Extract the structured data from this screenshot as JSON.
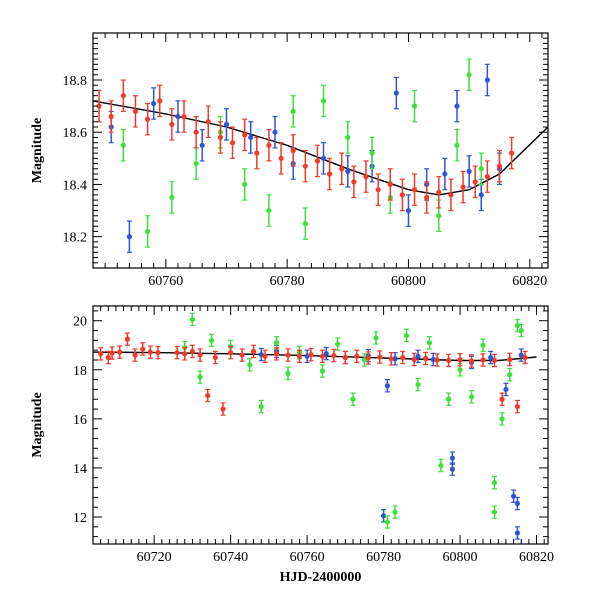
{
  "chart_data": [
    {
      "type": "scatter",
      "xlabel": "",
      "ylabel": "Magnitude",
      "xlim": [
        60748,
        60823
      ],
      "ylim": [
        18.98,
        18.08
      ],
      "y_inverted": true,
      "x_ticks": [
        60760,
        60780,
        60800,
        60820
      ],
      "y_ticks": [
        18.2,
        18.4,
        18.6,
        18.8
      ],
      "model_curve": {
        "x": [
          60748,
          60760,
          60770,
          60780,
          60790,
          60800,
          60805,
          60810,
          60815,
          60823
        ],
        "y": [
          18.72,
          18.67,
          18.62,
          18.55,
          18.46,
          18.38,
          18.36,
          18.38,
          18.44,
          18.62
        ]
      },
      "series": [
        {
          "color": "#2f55d4",
          "points": [
            [
              60751,
              18.62
            ],
            [
              60754,
              18.2
            ],
            [
              60758,
              18.71
            ],
            [
              60762,
              18.66
            ],
            [
              60766,
              18.55
            ],
            [
              60770,
              18.63
            ],
            [
              60774,
              18.58
            ],
            [
              60778,
              18.6
            ],
            [
              60781,
              18.48
            ],
            [
              60786,
              18.5
            ],
            [
              60790,
              18.45
            ],
            [
              60794,
              18.47
            ],
            [
              60798,
              18.75
            ],
            [
              60800,
              18.3
            ],
            [
              60803,
              18.4
            ],
            [
              60806,
              18.44
            ],
            [
              60808,
              18.7
            ],
            [
              60810,
              18.45
            ],
            [
              60812,
              18.36
            ],
            [
              60813,
              18.8
            ],
            [
              60815,
              18.46
            ]
          ]
        },
        {
          "color": "#3ee03e",
          "points": [
            [
              60753,
              18.55
            ],
            [
              60757,
              18.22
            ],
            [
              60761,
              18.35
            ],
            [
              60765,
              18.48
            ],
            [
              60769,
              18.6
            ],
            [
              60773,
              18.4
            ],
            [
              60777,
              18.3
            ],
            [
              60781,
              18.68
            ],
            [
              60783,
              18.25
            ],
            [
              60786,
              18.72
            ],
            [
              60790,
              18.58
            ],
            [
              60794,
              18.52
            ],
            [
              60797,
              18.35
            ],
            [
              60801,
              18.7
            ],
            [
              60805,
              18.28
            ],
            [
              60808,
              18.55
            ],
            [
              60810,
              18.82
            ],
            [
              60812,
              18.46
            ]
          ]
        },
        {
          "color": "#f23a2a",
          "points": [
            [
              60749,
              18.7
            ],
            [
              60751,
              18.66
            ],
            [
              60753,
              18.74
            ],
            [
              60755,
              18.68
            ],
            [
              60757,
              18.65
            ],
            [
              60759,
              18.72
            ],
            [
              60761,
              18.63
            ],
            [
              60763,
              18.66
            ],
            [
              60765,
              18.6
            ],
            [
              60767,
              18.64
            ],
            [
              60769,
              18.58
            ],
            [
              60771,
              18.56
            ],
            [
              60773,
              18.59
            ],
            [
              60775,
              18.52
            ],
            [
              60777,
              18.55
            ],
            [
              60779,
              18.5
            ],
            [
              60781,
              18.53
            ],
            [
              60783,
              18.47
            ],
            [
              60785,
              18.49
            ],
            [
              60787,
              18.44
            ],
            [
              60789,
              18.46
            ],
            [
              60791,
              18.41
            ],
            [
              60793,
              18.43
            ],
            [
              60795,
              18.38
            ],
            [
              60797,
              18.4
            ],
            [
              60799,
              18.36
            ],
            [
              60801,
              18.38
            ],
            [
              60803,
              18.35
            ],
            [
              60805,
              18.37
            ],
            [
              60807,
              18.36
            ],
            [
              60809,
              18.39
            ],
            [
              60811,
              18.41
            ],
            [
              60813,
              18.43
            ],
            [
              60815,
              18.47
            ],
            [
              60817,
              18.52
            ]
          ]
        }
      ]
    },
    {
      "type": "scatter",
      "xlabel": "HJD-2400000",
      "ylabel": "Magnitude",
      "xlim": [
        60704,
        60823
      ],
      "ylim": [
        20.6,
        10.9
      ],
      "y_inverted": true,
      "x_ticks": [
        60720,
        60740,
        60760,
        60780,
        60800,
        60820
      ],
      "y_ticks": [
        12,
        14,
        16,
        18,
        20
      ],
      "model_curve": {
        "x": [
          60704,
          60720,
          60740,
          60760,
          60780,
          60800,
          60810,
          60820
        ],
        "y": [
          18.72,
          18.7,
          18.65,
          18.58,
          18.48,
          18.38,
          18.38,
          18.52
        ]
      },
      "series": [
        {
          "color": "#2f55d4",
          "points": [
            [
              60748,
              18.62
            ],
            [
              60752,
              18.75
            ],
            [
              60760,
              18.55
            ],
            [
              60765,
              18.66
            ],
            [
              60770,
              18.5
            ],
            [
              60776,
              18.58
            ],
            [
              60780,
              12.05
            ],
            [
              60781,
              17.35
            ],
            [
              60783,
              18.45
            ],
            [
              60789,
              18.55
            ],
            [
              60793,
              18.42
            ],
            [
              60798,
              13.95
            ],
            [
              60798,
              14.4
            ],
            [
              60803,
              18.3
            ],
            [
              60808,
              18.5
            ],
            [
              60812,
              17.2
            ],
            [
              60814,
              12.85
            ],
            [
              60815,
              12.55
            ],
            [
              60815,
              11.35
            ],
            [
              60816,
              18.6
            ]
          ]
        },
        {
          "color": "#3ee03e",
          "points": [
            [
              60728,
              18.9
            ],
            [
              60730,
              20.05
            ],
            [
              60732,
              17.7
            ],
            [
              60735,
              19.2
            ],
            [
              60740,
              18.95
            ],
            [
              60745,
              18.2
            ],
            [
              60748,
              16.5
            ],
            [
              60752,
              19.1
            ],
            [
              60755,
              17.85
            ],
            [
              60758,
              18.7
            ],
            [
              60764,
              17.95
            ],
            [
              60768,
              19.05
            ],
            [
              60772,
              16.8
            ],
            [
              60775,
              18.4
            ],
            [
              60778,
              19.3
            ],
            [
              60781,
              11.8
            ],
            [
              60783,
              12.2
            ],
            [
              60786,
              19.4
            ],
            [
              60789,
              17.4
            ],
            [
              60792,
              19.1
            ],
            [
              60795,
              14.1
            ],
            [
              60797,
              16.8
            ],
            [
              60800,
              18.0
            ],
            [
              60803,
              16.9
            ],
            [
              60806,
              19.0
            ],
            [
              60809,
              13.4
            ],
            [
              60809,
              12.2
            ],
            [
              60811,
              16.0
            ],
            [
              60813,
              17.8
            ],
            [
              60815,
              19.8
            ],
            [
              60816,
              19.6
            ]
          ]
        },
        {
          "color": "#f23a2a",
          "points": [
            [
              60706,
              18.65
            ],
            [
              60708,
              18.5
            ],
            [
              60709,
              18.68
            ],
            [
              60711,
              18.72
            ],
            [
              60713,
              19.25
            ],
            [
              60715,
              18.6
            ],
            [
              60717,
              18.85
            ],
            [
              60719,
              18.72
            ],
            [
              60721,
              18.7
            ],
            [
              60726,
              18.7
            ],
            [
              60728,
              18.65
            ],
            [
              60730,
              18.75
            ],
            [
              60732,
              18.6
            ],
            [
              60734,
              16.95
            ],
            [
              60736,
              18.5
            ],
            [
              60738,
              16.4
            ],
            [
              60740,
              18.7
            ],
            [
              60743,
              18.6
            ],
            [
              60746,
              18.75
            ],
            [
              60749,
              18.55
            ],
            [
              60752,
              18.65
            ],
            [
              60755,
              18.6
            ],
            [
              60758,
              18.55
            ],
            [
              60761,
              18.62
            ],
            [
              60764,
              18.55
            ],
            [
              60767,
              18.58
            ],
            [
              60770,
              18.5
            ],
            [
              60773,
              18.55
            ],
            [
              60776,
              18.48
            ],
            [
              60779,
              18.52
            ],
            [
              60782,
              18.45
            ],
            [
              60785,
              18.5
            ],
            [
              60788,
              18.42
            ],
            [
              60791,
              18.46
            ],
            [
              60794,
              18.4
            ],
            [
              60797,
              18.38
            ],
            [
              60800,
              18.41
            ],
            [
              60803,
              18.36
            ],
            [
              60806,
              18.4
            ],
            [
              60809,
              18.38
            ],
            [
              60811,
              16.8
            ],
            [
              60813,
              18.42
            ],
            [
              60815,
              16.5
            ],
            [
              60817,
              18.5
            ]
          ]
        }
      ]
    }
  ]
}
